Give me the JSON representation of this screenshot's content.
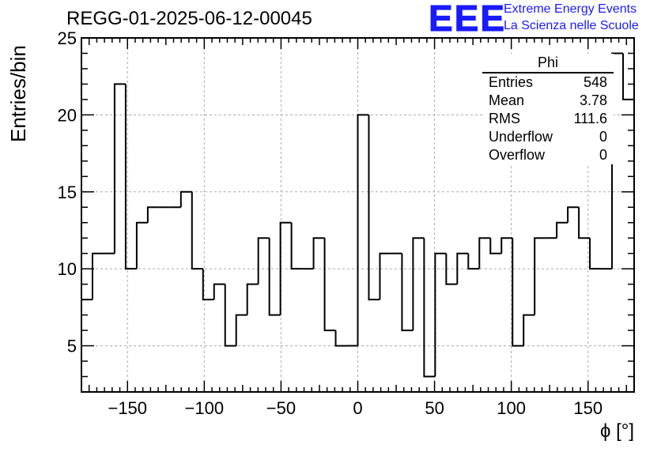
{
  "header": {
    "title": "REGG-01-2025-06-12-00045",
    "logo_text": "EEE",
    "logo_line1": "Extreme Energy Events",
    "logo_line2": "La Scienza nelle Scuole",
    "logo_color": "#1a1aff"
  },
  "stats_box": {
    "name": "Phi",
    "rows": [
      {
        "label": "Entries",
        "value": "548"
      },
      {
        "label": "Mean",
        "value": "3.78"
      },
      {
        "label": "RMS",
        "value": "111.6"
      },
      {
        "label": "Underflow",
        "value": "0"
      },
      {
        "label": "Overflow",
        "value": "0"
      }
    ]
  },
  "chart_data": {
    "type": "histogram",
    "title": "REGG-01-2025-06-12-00045",
    "xlabel": "ϕ [°]",
    "ylabel": "Entries/bin",
    "xlim": [
      -180,
      180
    ],
    "ylim": [
      2,
      25
    ],
    "bin_width": 7.2,
    "bin_edges_start": -180,
    "values": [
      8,
      11,
      11,
      22,
      10,
      13,
      14,
      14,
      14,
      15,
      10,
      8,
      9,
      5,
      7,
      9,
      12,
      7,
      13,
      10,
      10,
      12,
      6,
      5,
      5,
      20,
      8,
      11,
      11,
      6,
      12,
      3,
      11,
      9,
      11,
      10,
      12,
      11,
      12,
      5,
      7,
      12,
      12,
      13,
      14,
      12,
      10,
      10,
      24,
      21
    ],
    "x_ticks": [
      -150,
      -100,
      -50,
      0,
      50,
      100,
      150
    ],
    "x_tick_labels": [
      "−150",
      "−100",
      "−50",
      "0",
      "50",
      "100",
      "150"
    ],
    "y_ticks": [
      5,
      10,
      15,
      20,
      25
    ],
    "y_tick_labels": [
      "5",
      "10",
      "15",
      "20",
      "25"
    ],
    "grid": true,
    "line_color": "#000000"
  }
}
